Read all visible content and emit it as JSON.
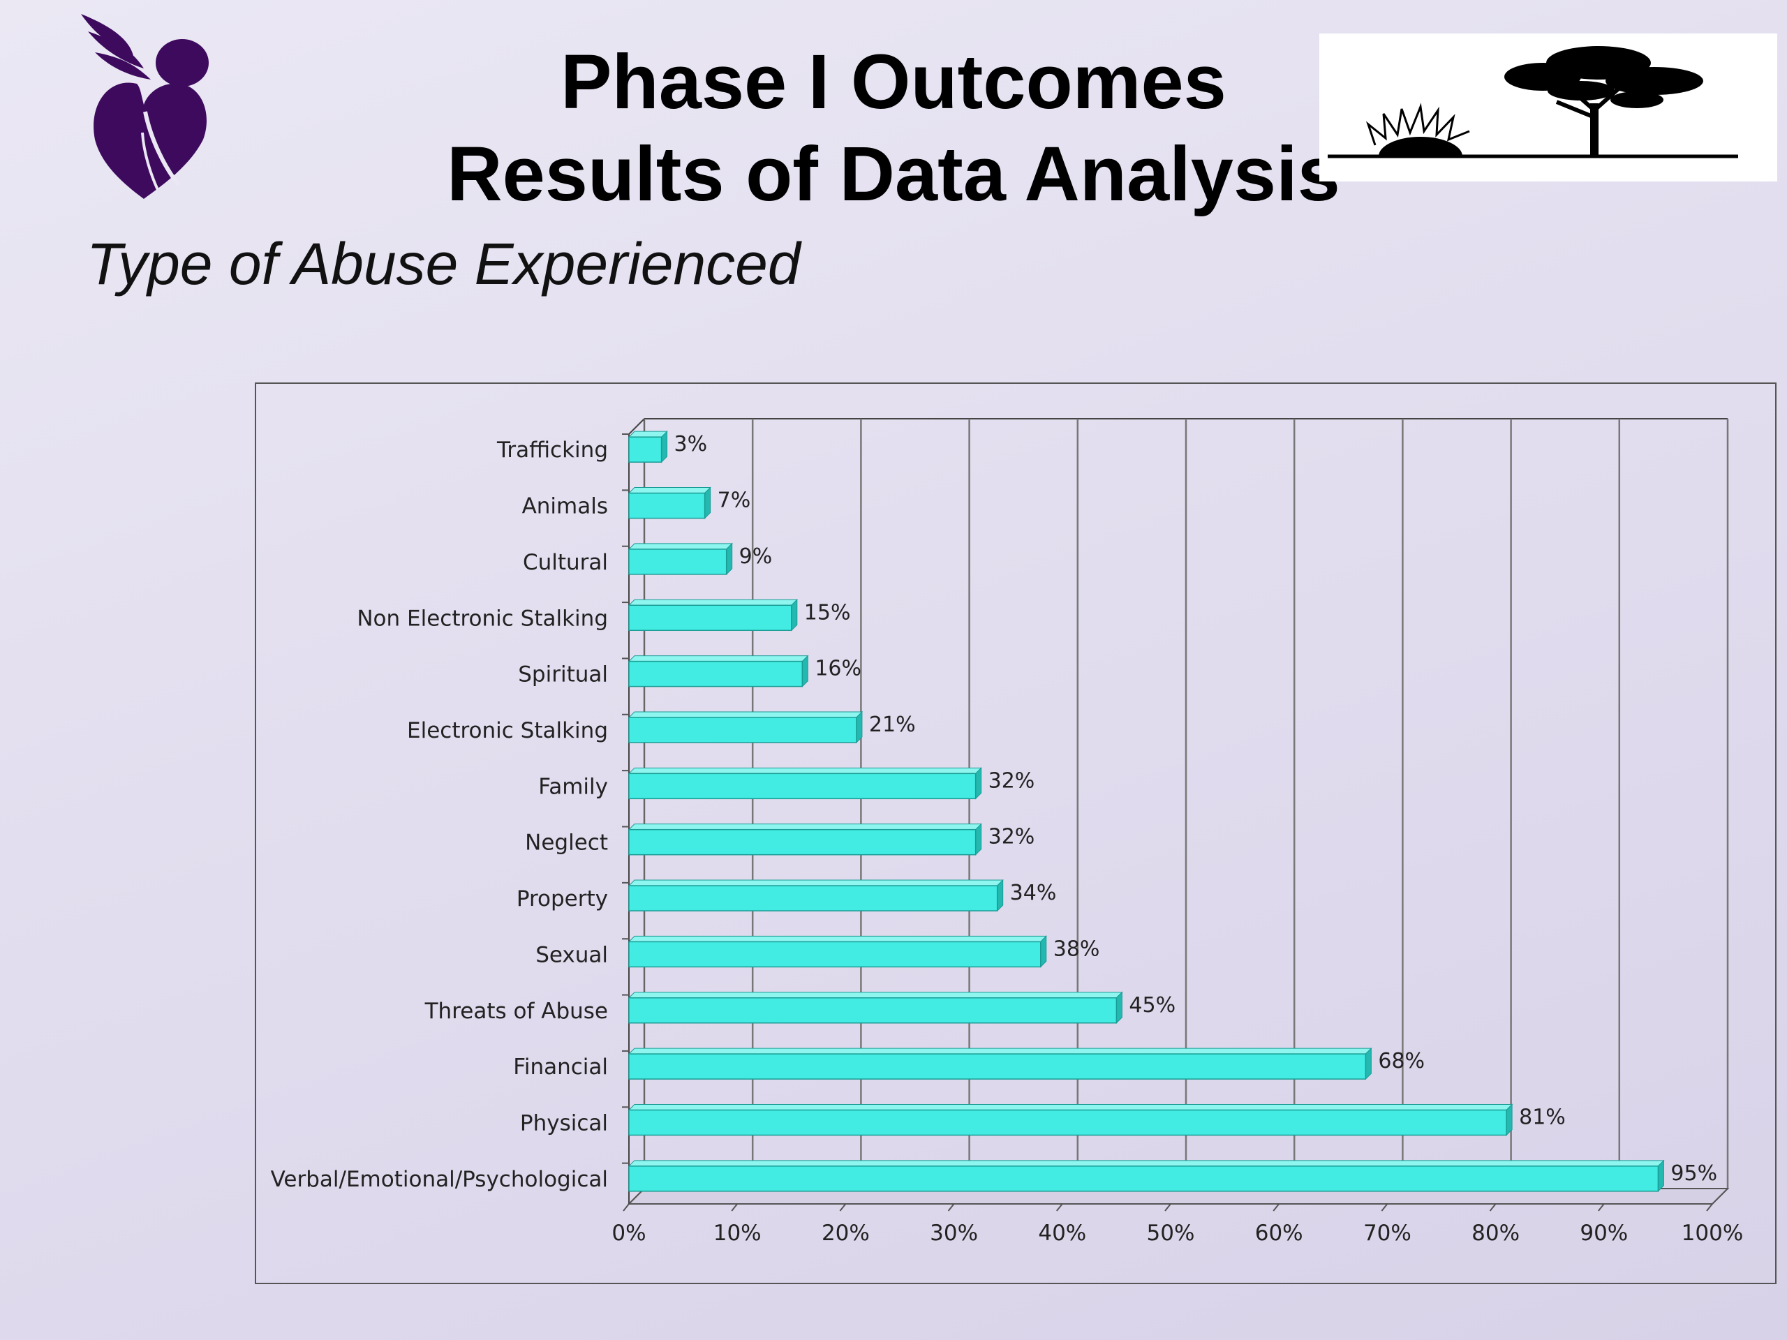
{
  "slide": {
    "title_line1": "Phase I Outcomes",
    "title_line2": "Results of Data Analysis",
    "subtitle": "Type of Abuse Experienced"
  },
  "colors": {
    "bar_face": "#42ece2",
    "bar_top": "#8ef5ef",
    "bar_side": "#23b8b0",
    "logo_purple": "#3d0a5e",
    "gridline": "#777777"
  },
  "icons": {
    "left_logo": "dove-heart-logo",
    "right_logo": "sunrise-tree-logo"
  },
  "chart_data": {
    "type": "bar",
    "orientation": "horizontal",
    "categories": [
      "Trafficking",
      "Animals",
      "Cultural",
      "Non Electronic Stalking",
      "Spiritual",
      "Electronic Stalking",
      "Family",
      "Neglect",
      "Property",
      "Sexual",
      "Threats of Abuse",
      "Financial",
      "Physical",
      "Verbal/Emotional/Psychological"
    ],
    "values": [
      3,
      7,
      9,
      15,
      16,
      21,
      32,
      32,
      34,
      38,
      45,
      68,
      81,
      95
    ],
    "value_labels": [
      "3%",
      "7%",
      "9%",
      "15%",
      "16%",
      "21%",
      "32%",
      "32%",
      "34%",
      "38%",
      "45%",
      "68%",
      "81%",
      "95%"
    ],
    "xlim": [
      0,
      100
    ],
    "x_ticks": [
      "0%",
      "10%",
      "20%",
      "30%",
      "40%",
      "50%",
      "60%",
      "70%",
      "80%",
      "90%",
      "100%"
    ],
    "grid": "vertical",
    "style": "3d-clustered-bar"
  }
}
